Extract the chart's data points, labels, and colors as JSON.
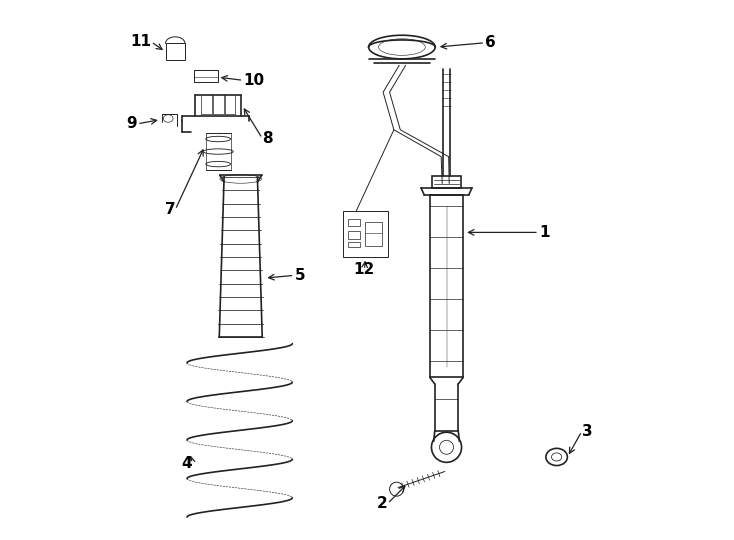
{
  "background_color": "#ffffff",
  "line_color": "#222222",
  "text_color": "#000000",
  "fig_width": 7.34,
  "fig_height": 5.4,
  "dpi": 100
}
